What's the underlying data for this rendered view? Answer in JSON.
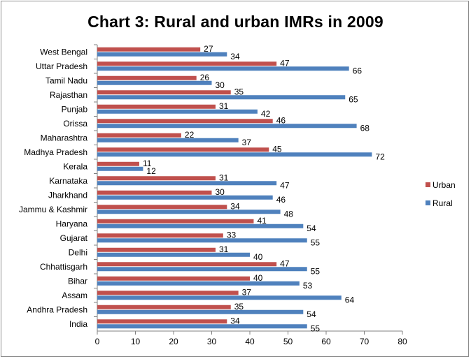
{
  "chart_data": {
    "type": "bar",
    "orientation": "horizontal",
    "title": "Chart 3: Rural and urban IMRs in 2009",
    "categories": [
      "India",
      "Andhra Pradesh",
      "Assam",
      "Bihar",
      "Chhattisgarh",
      "Delhi",
      "Gujarat",
      "Haryana",
      "Jammu & Kashmir",
      "Jharkhand",
      "Karnataka",
      "Kerala",
      "Madhya Pradesh",
      "Maharashtra",
      "Orissa",
      "Punjab",
      "Rajasthan",
      "Tamil Nadu",
      "Uttar Pradesh",
      "West Bengal"
    ],
    "series": [
      {
        "name": "Urban",
        "color": "#c0504d",
        "values": [
          34,
          35,
          37,
          40,
          47,
          31,
          33,
          41,
          34,
          30,
          31,
          11,
          45,
          22,
          46,
          31,
          35,
          26,
          47,
          27
        ]
      },
      {
        "name": "Rural",
        "color": "#4f81bd",
        "values": [
          55,
          54,
          64,
          53,
          55,
          40,
          55,
          54,
          48,
          46,
          47,
          12,
          72,
          37,
          68,
          42,
          65,
          30,
          66,
          34
        ]
      }
    ],
    "xlim": [
      0,
      80
    ],
    "xticks": [
      0,
      10,
      20,
      30,
      40,
      50,
      60,
      70,
      80
    ],
    "legend_position": "right",
    "grid": false,
    "data_labels": true
  }
}
